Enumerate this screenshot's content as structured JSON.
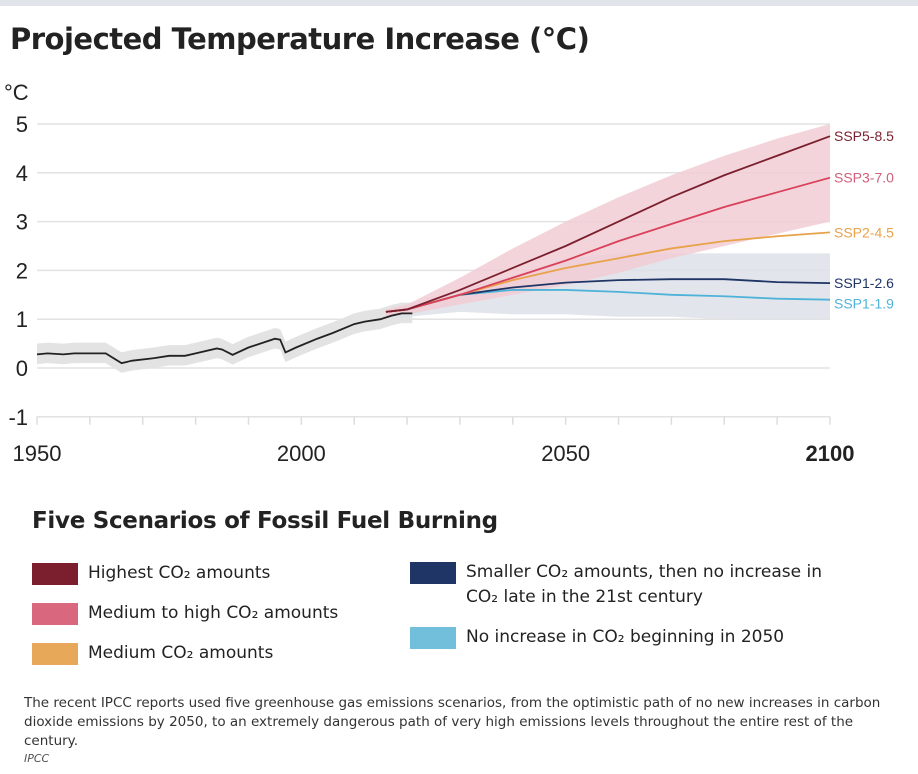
{
  "chart_data": {
    "type": "line",
    "title": "Projected Temperature Increase (°C)",
    "ylabel": "°C",
    "xlabel": "",
    "xlim": [
      1950,
      2100
    ],
    "ylim": [
      -1,
      5
    ],
    "xticks": [
      1950,
      2000,
      2050,
      2100
    ],
    "yticks": [
      5,
      4,
      3,
      2,
      1,
      0,
      -1
    ],
    "grid": true,
    "historical": {
      "color": "#222222",
      "band_color": "#e3e3e3",
      "x": [
        1950,
        1952,
        1955,
        1957,
        1963,
        1966,
        1968,
        1972,
        1975,
        1978,
        1980,
        1984,
        1985,
        1987,
        1990,
        1995,
        1996,
        1997,
        1999,
        2003,
        2006,
        2010,
        2012,
        2015,
        2017,
        2019,
        2021
      ],
      "y": [
        0.28,
        0.3,
        0.28,
        0.3,
        0.3,
        0.1,
        0.15,
        0.2,
        0.25,
        0.25,
        0.3,
        0.4,
        0.38,
        0.27,
        0.42,
        0.6,
        0.58,
        0.32,
        0.42,
        0.6,
        0.72,
        0.9,
        0.95,
        1.0,
        1.07,
        1.12,
        1.12
      ]
    },
    "projection_x": [
      2016,
      2020,
      2030,
      2040,
      2050,
      2060,
      2070,
      2080,
      2090,
      2100
    ],
    "series": [
      {
        "name": "SSP5-8.5",
        "color": "#7b1f2e",
        "label_color": "#7b1f2e",
        "values": [
          1.15,
          1.2,
          1.6,
          2.05,
          2.5,
          3.0,
          3.5,
          3.95,
          4.35,
          4.75
        ]
      },
      {
        "name": "SSP3-7.0",
        "color": "#d9405a",
        "label_color": "#cf5f7a",
        "values": [
          1.15,
          1.2,
          1.5,
          1.85,
          2.2,
          2.6,
          2.95,
          3.3,
          3.6,
          3.9
        ]
      },
      {
        "name": "SSP2-4.5",
        "color": "#e8a24a",
        "label_color": "#e8a24a",
        "values": [
          1.15,
          1.2,
          1.5,
          1.8,
          2.05,
          2.25,
          2.45,
          2.6,
          2.7,
          2.78
        ]
      },
      {
        "name": "SSP1-2.6",
        "color": "#1f3566",
        "label_color": "#1f3566",
        "values": [
          1.15,
          1.2,
          1.5,
          1.65,
          1.75,
          1.8,
          1.82,
          1.82,
          1.76,
          1.74
        ]
      },
      {
        "name": "SSP1-1.9",
        "color": "#4fb3d9",
        "label_color": "#4fb3d9",
        "values": [
          1.15,
          1.2,
          1.5,
          1.6,
          1.6,
          1.56,
          1.5,
          1.47,
          1.42,
          1.4
        ]
      }
    ],
    "bands": [
      {
        "color": "#f2cdd5",
        "upper": [
          1.2,
          1.3,
          1.85,
          2.45,
          3.0,
          3.5,
          3.95,
          4.35,
          4.7,
          5.0
        ],
        "lower": [
          1.05,
          1.1,
          1.3,
          1.5,
          1.7,
          1.95,
          2.25,
          2.5,
          2.75,
          3.0
        ]
      },
      {
        "color": "#dde0e8",
        "upper": [
          1.2,
          1.3,
          1.6,
          1.9,
          2.25,
          2.35,
          2.35,
          2.35,
          2.35,
          2.35
        ],
        "lower": [
          1.0,
          1.05,
          1.15,
          1.1,
          1.1,
          1.05,
          1.05,
          1.0,
          1.0,
          1.0
        ]
      }
    ]
  },
  "legend": {
    "title": "Five Scenarios of Fossil Fuel Burning",
    "items": [
      {
        "color": "#7b1f2e",
        "label": "Highest CO₂ amounts"
      },
      {
        "color": "#d9687e",
        "label": "Medium to high CO₂ amounts"
      },
      {
        "color": "#e8a85a",
        "label": "Medium CO₂ amounts"
      },
      {
        "color": "#1f3566",
        "label": "Smaller CO₂ amounts, then no increase in CO₂ late in the 21st century"
      },
      {
        "color": "#72bfdc",
        "label": "No increase in CO₂ beginning in 2050"
      }
    ]
  },
  "caption": "The recent IPCC reports used five greenhouse gas emissions scenarios, from the optimistic path of no new increases in carbon dioxide emissions by 2050, to an extremely dangerous path of very high emissions levels throughout the entire rest of the century.",
  "credit": "IPCC"
}
